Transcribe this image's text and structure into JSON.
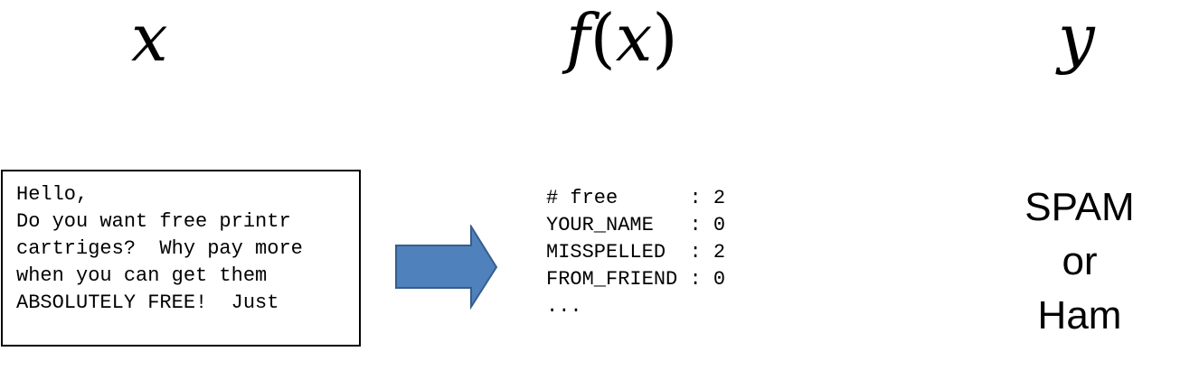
{
  "columns": {
    "x": "x",
    "f_name": "f",
    "f_open": "(",
    "f_arg": "x",
    "f_close": ")",
    "y": "y"
  },
  "email": {
    "lines": [
      "Hello,",
      "",
      "Do you want free printr",
      "cartriges?  Why pay more",
      "when you can get them",
      "ABSOLUTELY FREE!  Just"
    ]
  },
  "arrow": {
    "color": "#4f81bd",
    "stroke": "#385d8a"
  },
  "features": [
    {
      "name": "# free      ",
      "sep": ": ",
      "value": "2"
    },
    {
      "name": "YOUR_NAME   ",
      "sep": ": ",
      "value": "0"
    },
    {
      "name": "MISSPELLED  ",
      "sep": ": ",
      "value": "2"
    },
    {
      "name": "FROM_FRIEND ",
      "sep": ": ",
      "value": "0"
    }
  ],
  "features_more": "...",
  "output": {
    "line1": "SPAM",
    "line2": "or",
    "line3": "Ham"
  }
}
